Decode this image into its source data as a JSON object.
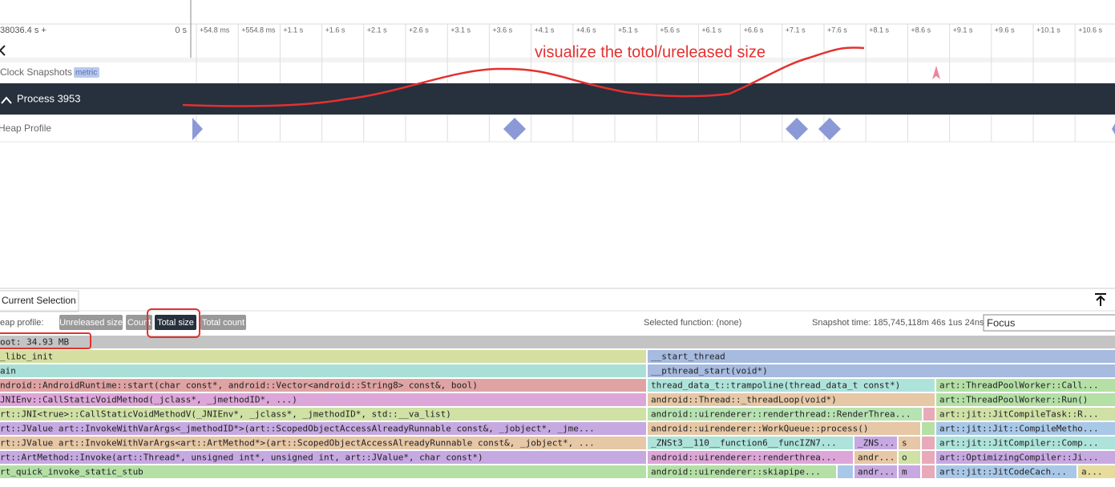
{
  "timeline": {
    "offset_label": "38036.4 s +",
    "ticks": [
      "0 s",
      "+54.8 ms",
      "+554.8 ms",
      "+1.1 s",
      "+1.6 s",
      "+2.1 s",
      "+2.6 s",
      "+3.1 s",
      "+3.6 s",
      "+4.1 s",
      "+4.6 s",
      "+5.1 s",
      "+5.6 s",
      "+6.1 s",
      "+6.6 s",
      "+7.1 s",
      "+7.6 s",
      "+8.1 s",
      "+8.6 s",
      "+9.1 s",
      "+9.6 s",
      "+10.1 s",
      "+10.6 s"
    ]
  },
  "tracks": {
    "clock_snapshots": "Clock Snapshots",
    "metric_badge": "metric",
    "process": "Process 3953",
    "heap_profile": "Heap Profile"
  },
  "annotation": "visualize the totol/ureleased size",
  "panel": {
    "tab": "Current Selection",
    "heap_profile_label": "eap profile:",
    "buttons": [
      "Unreleased size",
      "Count",
      "Total size",
      "Total count"
    ],
    "selected_function": "Selected function: (none)",
    "snapshot_time": "Snapshot time: 185,745,118m 46s 1us 24ns",
    "focus_placeholder": "Focus"
  },
  "flamegraph": {
    "rows": [
      [
        {
          "label": "oot: 34.93 MB",
          "color": "#c4c4c4"
        }
      ],
      [
        {
          "label": "_libc_init",
          "color": "#d6dfa2"
        },
        {
          "label": "__start_thread",
          "color": "#a7badf"
        }
      ],
      [
        {
          "label": "ain",
          "color": "#a9dfd7"
        },
        {
          "label": "__pthread_start(void*)",
          "color": "#a7badf"
        }
      ],
      [
        {
          "label": "ndroid::AndroidRuntime::start(char const*, android::Vector<android::String8> const&, bool)",
          "color": "#e0a3a3"
        },
        {
          "label": "thread_data_t::trampoline(thread_data_t const*)",
          "color": "#ade3da"
        },
        {
          "label": "art::ThreadPoolWorker::Call...",
          "color": "#b4e0a6"
        }
      ],
      [
        {
          "label": "JNIEnv::CallStaticVoidMethod(_jclass*, _jmethodID*, ...)",
          "color": "#dca6d8"
        },
        {
          "label": "android::Thread::_threadLoop(void*)",
          "color": "#e6c7a6"
        },
        {
          "label": "art::ThreadPoolWorker::Run()",
          "color": "#b4e0a6"
        }
      ],
      [
        {
          "label": "rt::JNI<true>::CallStaticVoidMethodV(_JNIEnv*, _jclass*, _jmethodID*, std::__va_list)",
          "color": "#cfe1a5"
        },
        {
          "label": "android::uirenderer::renderthread::RenderThrea...",
          "color": "#b7e2b2"
        },
        {
          "color": "#e8aab8"
        },
        {
          "label": "art::jit::JitCompileTask::R...",
          "color": "#cfe1a5"
        }
      ],
      [
        {
          "label": "rt::JValue art::InvokeWithVarArgs<_jmethodID*>(art::ScopedObjectAccessAlreadyRunnable const&, _jobject*, _jme...",
          "color": "#c7a9e2"
        },
        {
          "label": "android::uirenderer::WorkQueue::process()",
          "color": "#e6c7a6"
        },
        {
          "color": "#b4e0a6"
        },
        {
          "label": "art::jit::Jit::CompileMetho...",
          "color": "#a9c8e8"
        }
      ],
      [
        {
          "label": "rt::JValue art::InvokeWithVarArgs<art::ArtMethod*>(art::ScopedObjectAccessAlreadyRunnable const&, _jobject*, ...",
          "color": "#e6c7a6"
        },
        {
          "label": "_ZNSt3__110__function6__funcIZN7...",
          "color": "#ade3da"
        },
        {
          "label": "_ZNS...",
          "color": "#c7a9e2"
        },
        {
          "label": "s",
          "color": "#e6c7a6"
        },
        {
          "color": "#e8aab8"
        },
        {
          "label": "art::jit::JitCompiler::Comp...",
          "color": "#ade3da"
        }
      ],
      [
        {
          "label": "rt::ArtMethod::Invoke(art::Thread*, unsigned int*, unsigned int, art::JValue*, char const*)",
          "color": "#c7a9e2"
        },
        {
          "label": "android::uirenderer::renderthrea...",
          "color": "#dca6d8"
        },
        {
          "label": "andr...",
          "color": "#e6c7a6"
        },
        {
          "label": "o",
          "color": "#cfe1a5"
        },
        {
          "color": "#e8aab8"
        },
        {
          "label": "art::OptimizingCompiler::Ji...",
          "color": "#c7a9e2"
        }
      ],
      [
        {
          "label": "rt_quick_invoke_static_stub",
          "color": "#b4e0a6"
        },
        {
          "label": "android::uirenderer::skiapipe...",
          "color": "#b4e0a6"
        },
        {
          "color": "#a9c8e8"
        },
        {
          "label": "andr...",
          "color": "#c7a9e2"
        },
        {
          "label": "m",
          "color": "#c7a9e2"
        },
        {
          "color": "#e8aab8"
        },
        {
          "label": "art::jit::JitCodeCach...",
          "color": "#a9c8e8"
        },
        {
          "label": "a...",
          "color": "#e6dc9e"
        }
      ]
    ]
  }
}
